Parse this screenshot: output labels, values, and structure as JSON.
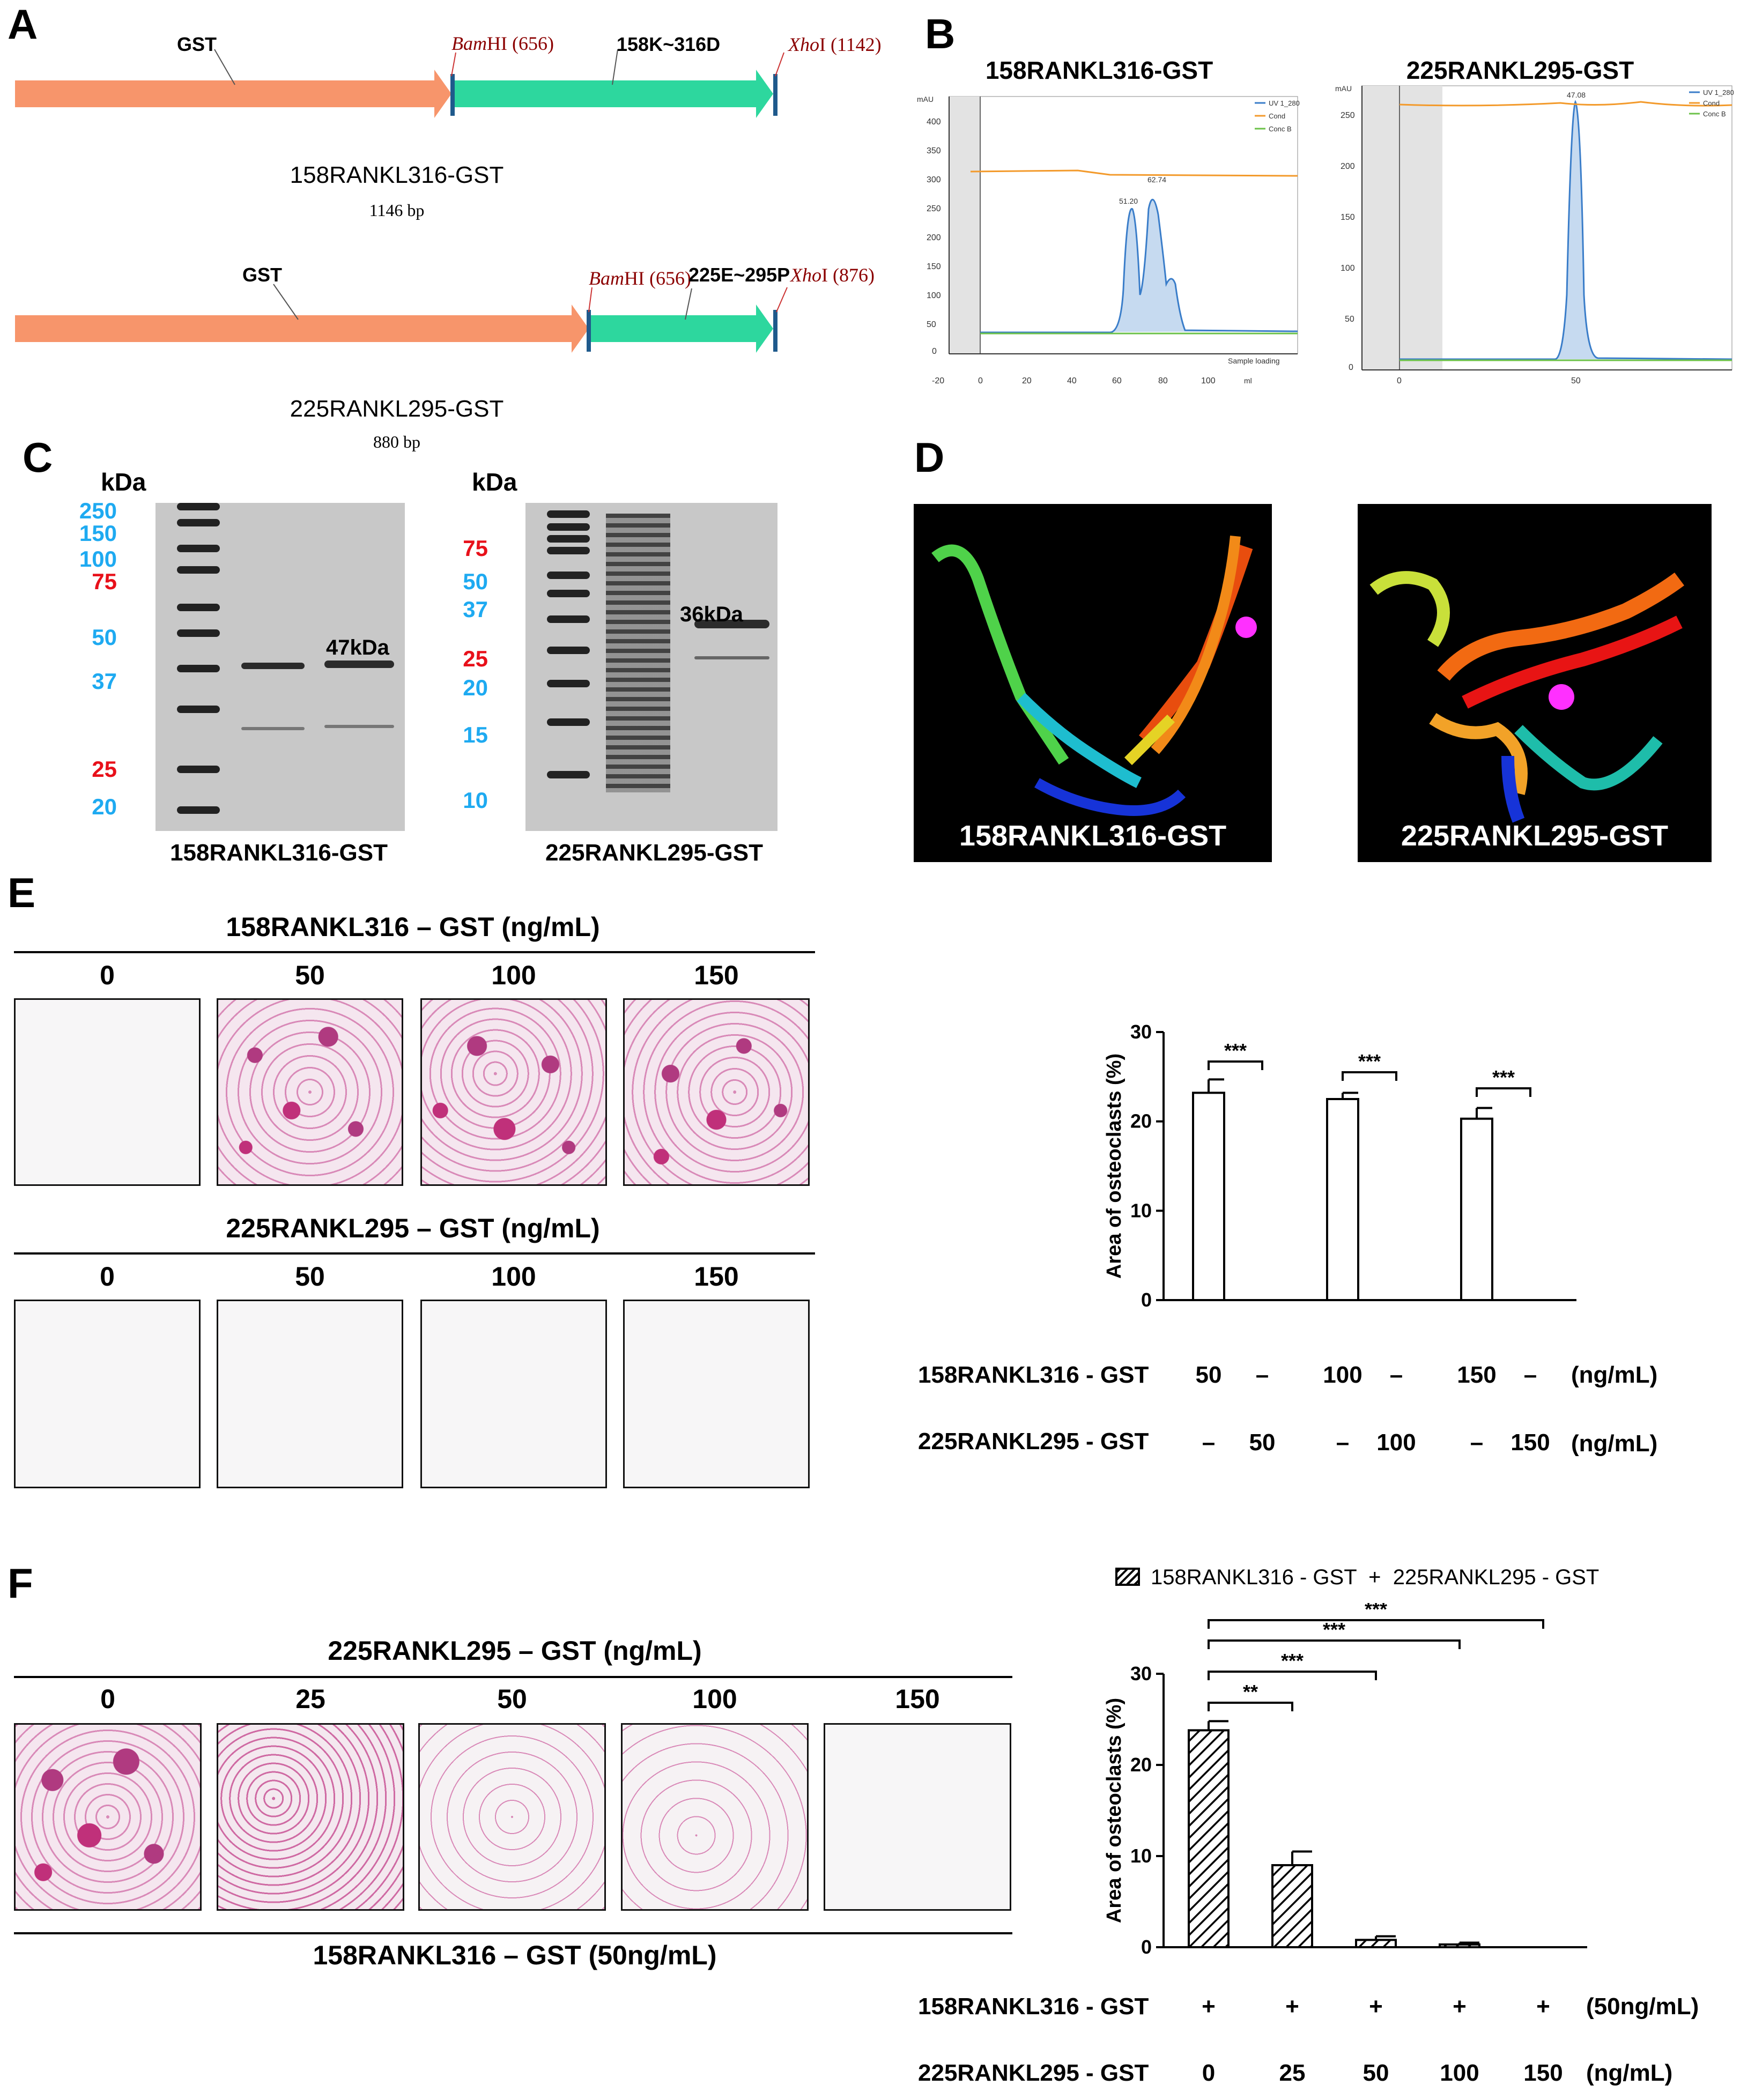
{
  "panel_letters": {
    "a": "A",
    "b": "B",
    "c": "C",
    "d": "D",
    "e": "E",
    "f": "F"
  },
  "panel_a": {
    "construct1": {
      "gst": "GST",
      "bamhi_name": "Bam",
      "bamhi_suffix": "HI (656)",
      "insert": "158K~316D",
      "xhoi_name": "Xho",
      "xhoi_suffix": "I (1142)",
      "name": "158RANKL316-GST",
      "size": "1146 bp"
    },
    "construct2": {
      "gst": "GST",
      "bamhi_name": "Bam",
      "bamhi_suffix": "HI (656)",
      "insert": "225E~295P",
      "xhoi_name": "Xho",
      "xhoi_suffix": "I (876)",
      "name": "225RANKL295-GST",
      "size": "880 bp"
    },
    "colors": {
      "gst_arrow": "#f7956b",
      "insert_arrow": "#2dd79e",
      "marker": "#1f5a8c",
      "site_text": "#8b0000"
    }
  },
  "panel_b": {
    "left": {
      "title": "158RANKL316-GST",
      "yunit": "mAU",
      "xunit": "ml",
      "legend": [
        "UV 1_280",
        "Cond",
        "Conc B"
      ],
      "yticks": [
        "400",
        "350",
        "300",
        "250",
        "200",
        "150",
        "100",
        "50",
        "0"
      ],
      "xticks": [
        "-20",
        "0",
        "20",
        "40",
        "60",
        "80",
        "100"
      ],
      "peak1": "51.20",
      "peak2": "62.74",
      "note": "Sample loading"
    },
    "right": {
      "title": "225RANKL295-GST",
      "yunit": "mAU",
      "legend": [
        "UV 1_280",
        "Cond",
        "Conc B"
      ],
      "yticks": [
        "250",
        "200",
        "150",
        "100",
        "50",
        "0"
      ],
      "xticks": [
        "0",
        "50"
      ],
      "peak": "47.08"
    },
    "colors": {
      "uv": "#3a7dc9",
      "cond": "#f39a2b",
      "concb": "#6cc24a",
      "fill": "#c6daf0"
    }
  },
  "panel_c": {
    "kda_label": "kDa",
    "left": {
      "markers": [
        {
          "label": "250",
          "color": "#1eaaf1"
        },
        {
          "label": "150",
          "color": "#1eaaf1"
        },
        {
          "label": "100",
          "color": "#1eaaf1"
        },
        {
          "label": "75",
          "color": "#e8101a"
        },
        {
          "label": "50",
          "color": "#1eaaf1"
        },
        {
          "label": "37",
          "color": "#1eaaf1"
        },
        {
          "label": "25",
          "color": "#e8101a"
        },
        {
          "label": "20",
          "color": "#1eaaf1"
        }
      ],
      "band_label": "47kDa",
      "caption": "158RANKL316-GST"
    },
    "right": {
      "markers": [
        {
          "label": "75",
          "color": "#e8101a"
        },
        {
          "label": "50",
          "color": "#1eaaf1"
        },
        {
          "label": "37",
          "color": "#1eaaf1"
        },
        {
          "label": "25",
          "color": "#e8101a"
        },
        {
          "label": "20",
          "color": "#1eaaf1"
        },
        {
          "label": "15",
          "color": "#1eaaf1"
        },
        {
          "label": "10",
          "color": "#1eaaf1"
        }
      ],
      "band_label": "36kDa",
      "caption": "225RANKL295-GST"
    }
  },
  "panel_d": {
    "left_label": "158RANKL316-GST",
    "right_label": "225RANKL295-GST"
  },
  "panel_e": {
    "row1_title": "158RANKL316 – GST (ng/mL)",
    "row1_cols": [
      "0",
      "50",
      "100",
      "150"
    ],
    "row2_title": "225RANKL295 – GST (ng/mL)",
    "row2_cols": [
      "0",
      "50",
      "100",
      "150"
    ],
    "row1_staining": [
      "none",
      "heavy",
      "heavy",
      "heavy"
    ],
    "row2_staining": [
      "none",
      "none",
      "none",
      "none"
    ],
    "stain_color": "#c0307a",
    "condition_labels": {
      "row1": "158RANKL316 - GST",
      "row2": "225RANKL295 - GST",
      "unit": "(ng/mL)"
    },
    "condition_row1": [
      "50",
      "–",
      "100",
      "–",
      "150",
      "–"
    ],
    "condition_row2": [
      "–",
      "50",
      "–",
      "100",
      "–",
      "150"
    ]
  },
  "panel_f": {
    "top_title": "225RANKL295 – GST (ng/mL)",
    "cols": [
      "0",
      "25",
      "50",
      "100",
      "150"
    ],
    "bottom_title": "158RANKL316 – GST (50ng/mL)",
    "staining": [
      "heavy",
      "medium",
      "light",
      "light",
      "none"
    ],
    "legend": "158RANKL316 - GST  +  225RANKL295 - GST",
    "condition_labels": {
      "row1": "158RANKL316 - GST",
      "row1_unit": "(50ng/mL)",
      "row2": "225RANKL295 - GST",
      "row2_unit": "(ng/mL)"
    },
    "condition_row1": [
      "+",
      "+",
      "+",
      "+",
      "+"
    ],
    "condition_row2": [
      "0",
      "25",
      "50",
      "100",
      "150"
    ]
  },
  "chart_data": [
    {
      "type": "bar",
      "panel": "E",
      "ylabel": "Area of osteoclasts (%)",
      "ylim": [
        0,
        30
      ],
      "yticks": [
        "0",
        "10",
        "20",
        "30"
      ],
      "categories": [
        "50",
        "",
        "100",
        "",
        "150",
        ""
      ],
      "values": [
        23.2,
        0,
        22.5,
        0,
        20.3,
        0
      ],
      "errors": [
        1.5,
        0,
        0.7,
        0,
        1.2,
        0
      ],
      "significance": [
        {
          "from": 0,
          "to": 1,
          "label": "***"
        },
        {
          "from": 2,
          "to": 3,
          "label": "***"
        },
        {
          "from": 4,
          "to": 5,
          "label": "***"
        }
      ],
      "grid": false
    },
    {
      "type": "bar",
      "panel": "F",
      "ylabel": "Area of osteoclasts (%)",
      "ylim": [
        0,
        30
      ],
      "yticks": [
        "0",
        "10",
        "20",
        "30"
      ],
      "categories": [
        "0",
        "25",
        "50",
        "100",
        "150"
      ],
      "values": [
        23.8,
        9.0,
        0.8,
        0.3,
        0.0
      ],
      "errors": [
        1.0,
        1.5,
        0.4,
        0.2,
        0.0
      ],
      "series": [
        {
          "name": "158RANKL316 - GST  +  225RANKL295 - GST",
          "values": [
            23.8,
            9.0,
            0.8,
            0.3,
            0.0
          ]
        }
      ],
      "significance": [
        {
          "from": 0,
          "to": 1,
          "label": "**"
        },
        {
          "from": 0,
          "to": 2,
          "label": "***"
        },
        {
          "from": 0,
          "to": 3,
          "label": "***"
        },
        {
          "from": 0,
          "to": 4,
          "label": "***"
        }
      ],
      "legend_position": "top",
      "grid": false
    }
  ]
}
